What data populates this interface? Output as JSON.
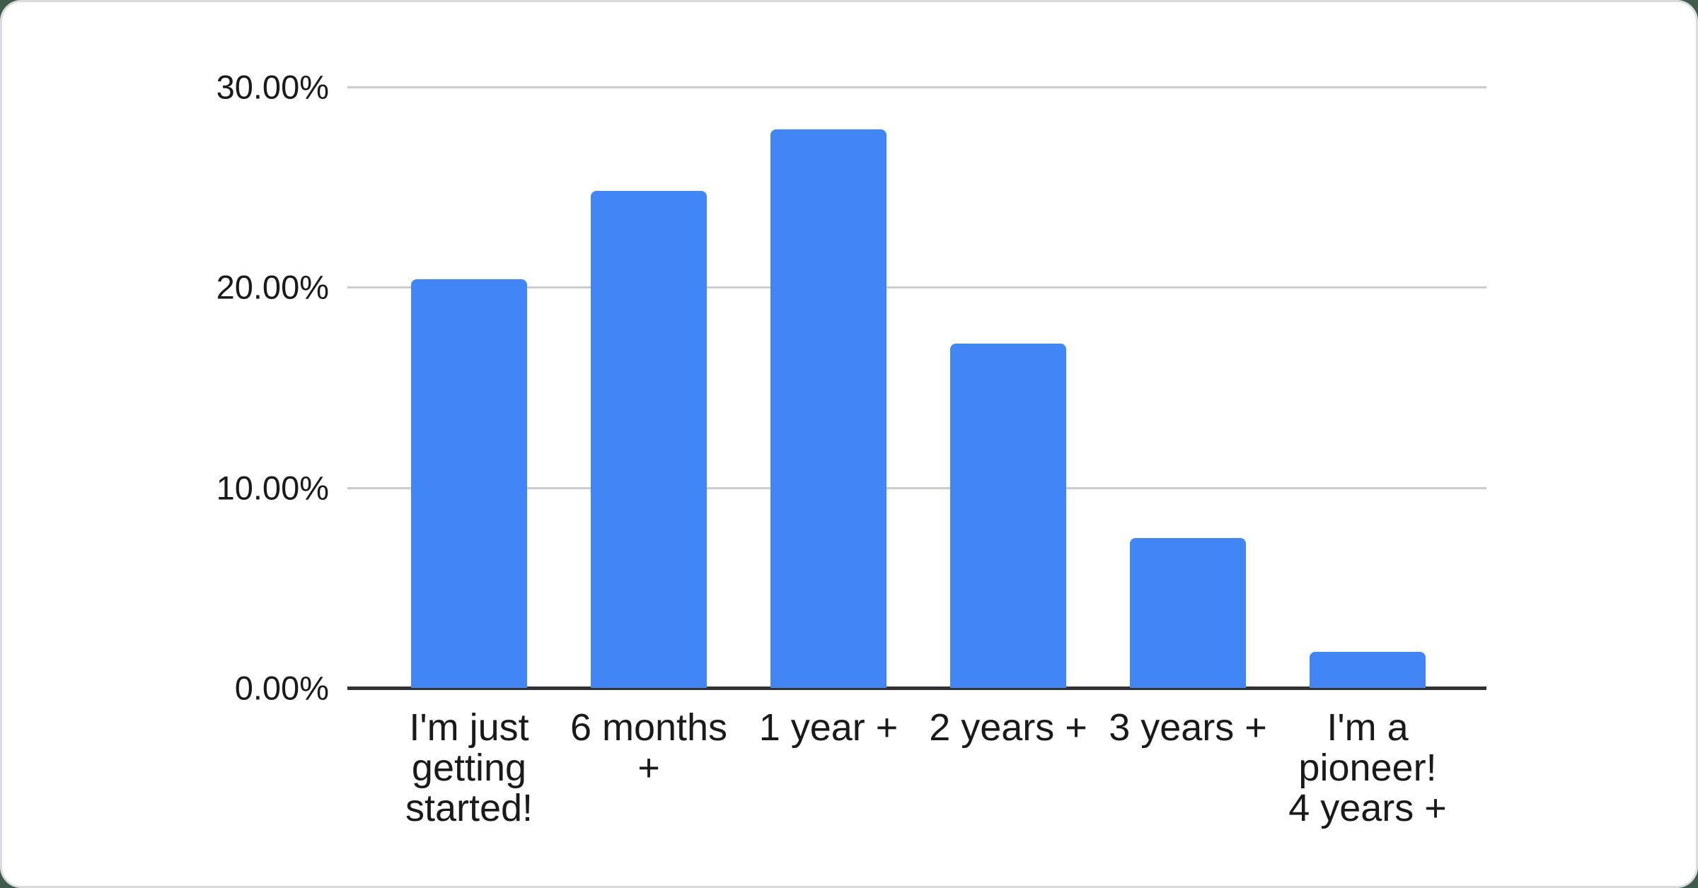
{
  "page": {
    "background_color": "#3f5c4b",
    "card_background": "#ffffff",
    "card_border_color": "#d9dbde"
  },
  "chart_data": {
    "type": "bar",
    "title": "",
    "xlabel": "",
    "ylabel": "",
    "categories": [
      "I'm just getting started!",
      "6 months +",
      "1 year +",
      "2 years +",
      "3 years +",
      "I'm a pioneer! 4 years +"
    ],
    "category_label_lines": [
      [
        "I'm just",
        "getting",
        "started!"
      ],
      [
        "6 months",
        "+"
      ],
      [
        "1 year +"
      ],
      [
        "2 years +"
      ],
      [
        "3 years +"
      ],
      [
        "I'm a",
        "pioneer!",
        "4 years +"
      ]
    ],
    "values": [
      20.4,
      24.8,
      27.9,
      17.2,
      7.5,
      1.8
    ],
    "unit": "%",
    "y_ticks": [
      {
        "label": "0.00%",
        "value": 0
      },
      {
        "label": "10.00%",
        "value": 10
      },
      {
        "label": "20.00%",
        "value": 20
      },
      {
        "label": "30.00%",
        "value": 30
      }
    ],
    "ylim": [
      0,
      30
    ],
    "grid": true,
    "legend_position": "none",
    "bar_color": "#4285f4",
    "gridline_color": "#cccccc",
    "axis_line_color": "#333333",
    "label_color": "#1a1a1a"
  }
}
